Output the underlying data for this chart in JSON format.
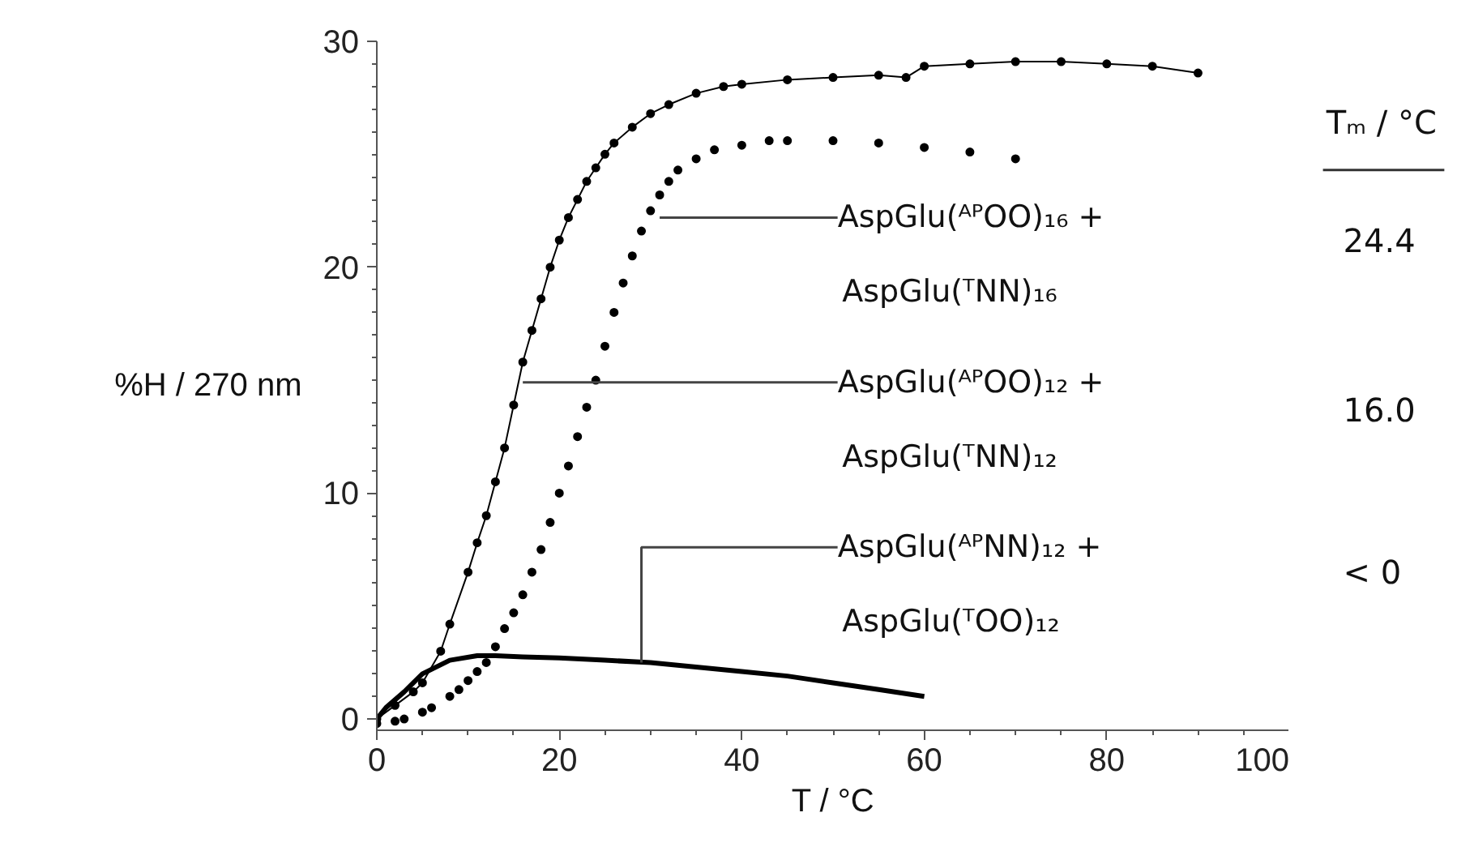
{
  "chart_data": {
    "type": "line",
    "xlabel": "T / °C",
    "ylabel": "%H / 270 nm",
    "xlim": [
      0,
      100
    ],
    "ylim": [
      -0.5,
      30
    ],
    "xticks": [
      0,
      20,
      40,
      60,
      80,
      100
    ],
    "yticks": [
      0,
      10,
      20,
      30
    ],
    "grid": false,
    "series": [
      {
        "color": "#000000",
        "marker": "circle",
        "line_style": "solid",
        "x": [
          0,
          2,
          4,
          5,
          7,
          8,
          10,
          11,
          12,
          13,
          14,
          15,
          16,
          17,
          18,
          19,
          20,
          21,
          22,
          23,
          24,
          25,
          26,
          28,
          30,
          32,
          35,
          38,
          40,
          45,
          50,
          55,
          58,
          60,
          65,
          70,
          75,
          80,
          85,
          90
        ],
        "values": [
          0,
          0.6,
          1.2,
          1.6,
          3,
          4.2,
          6.5,
          7.8,
          9,
          10.5,
          12,
          13.9,
          15.8,
          17.2,
          18.6,
          20,
          21.2,
          22.2,
          23,
          23.8,
          24.4,
          25,
          25.5,
          26.2,
          26.8,
          27.2,
          27.7,
          28,
          28.1,
          28.3,
          28.4,
          28.5,
          28.4,
          28.9,
          29,
          29.1,
          29.1,
          29,
          28.9,
          28.6
        ]
      },
      {
        "type": "scatter",
        "color": "#000000",
        "marker": "circle",
        "x": [
          0,
          2,
          3,
          5,
          6,
          8,
          9,
          10,
          11,
          12,
          13,
          14,
          15,
          16,
          17,
          18,
          19,
          20,
          21,
          22,
          23,
          24,
          25,
          26,
          27,
          28,
          29,
          30,
          31,
          32,
          33,
          35,
          37,
          40,
          43,
          45,
          50,
          55,
          60,
          65,
          70
        ],
        "values": [
          -0.2,
          -0.1,
          0,
          0.3,
          0.5,
          1,
          1.3,
          1.7,
          2.1,
          2.5,
          3.2,
          4,
          4.7,
          5.5,
          6.5,
          7.5,
          8.7,
          10,
          11.2,
          12.5,
          13.8,
          15,
          16.5,
          18,
          19.3,
          20.5,
          21.6,
          22.5,
          23.2,
          23.8,
          24.3,
          24.8,
          25.2,
          25.4,
          25.6,
          25.6,
          25.6,
          25.5,
          25.3,
          25.1,
          24.8
        ]
      },
      {
        "color": "#000000",
        "marker": "none",
        "line_style": "solid",
        "x": [
          0,
          1,
          3,
          5,
          8,
          11,
          13,
          16,
          20,
          25,
          30,
          35,
          40,
          45,
          50,
          55,
          60
        ],
        "values": [
          0,
          0.5,
          1.2,
          2,
          2.6,
          2.8,
          2.8,
          2.75,
          2.7,
          2.6,
          2.5,
          2.3,
          2.1,
          1.9,
          1.6,
          1.3,
          1.0
        ]
      }
    ],
    "annotations": [
      {
        "text": "AspGlu(ᴬᴾOO)₁₆ +",
        "x": 31,
        "y": 22.2
      },
      {
        "text": "AspGlu(ᴬᴾOO)₁₂ +",
        "x": 16,
        "y": 14.9
      },
      {
        "text": "AspGlu(ᴬᴾNN)₁₂ +",
        "x": 29,
        "y": 2.5
      },
      "AspGlu(ᵀNN)₁₆",
      "AspGlu(ᵀNN)₁₂",
      "AspGlu(ᵀOO)₁₂",
      "Tₘ / °C",
      "24.4",
      "16.0",
      "< 0"
    ]
  }
}
